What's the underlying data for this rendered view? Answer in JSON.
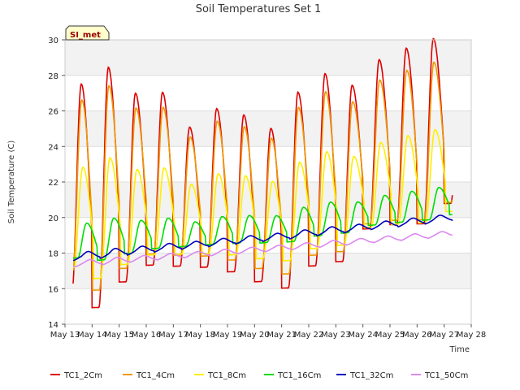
{
  "chart_data": {
    "type": "line",
    "title": "Soil Temperatures Set 1",
    "xlabel": "Time",
    "ylabel": "Soil Temperature (C)",
    "badge": "SI_met",
    "ylim": [
      14,
      30
    ],
    "yticks": [
      14,
      16,
      18,
      20,
      22,
      24,
      26,
      28,
      30
    ],
    "xlim": [
      13,
      28
    ],
    "xticks": [
      {
        "value": 13,
        "label": "May 13"
      },
      {
        "value": 14,
        "label": "May 14"
      },
      {
        "value": 15,
        "label": "May 15"
      },
      {
        "value": 16,
        "label": "May 16"
      },
      {
        "value": 17,
        "label": "May 17"
      },
      {
        "value": 18,
        "label": "May 18"
      },
      {
        "value": 19,
        "label": "May 19"
      },
      {
        "value": 20,
        "label": "May 20"
      },
      {
        "value": 21,
        "label": "May 21"
      },
      {
        "value": 22,
        "label": "May 22"
      },
      {
        "value": 23,
        "label": "May 23"
      },
      {
        "value": 24,
        "label": "May 24"
      },
      {
        "value": 25,
        "label": "May 25"
      },
      {
        "value": 26,
        "label": "May 26"
      },
      {
        "value": 27,
        "label": "May 27"
      },
      {
        "value": 28,
        "label": "May 28"
      }
    ],
    "x_start": 13.3,
    "x_end": 27.3,
    "peak_phase": 0.6,
    "daily_peaks": [
      27.8,
      28.7,
      27.2,
      27.2,
      25.2,
      26.2,
      25.8,
      25.0,
      27.0,
      28.0,
      27.3,
      28.7,
      29.3,
      29.8
    ],
    "daily_mins": [
      16.0,
      15.2,
      16.6,
      17.5,
      17.4,
      17.3,
      17.0,
      16.4,
      16.0,
      17.2,
      17.4,
      19.2,
      19.4,
      19.4,
      20.5
    ],
    "series": [
      {
        "name": "TC1_2Cm",
        "color": "#dd0000",
        "attenuation": 1.0,
        "lag": 0.0,
        "base_start": 21.5,
        "base_end": 24.5
      },
      {
        "name": "TC1_4Cm",
        "color": "#ee9900",
        "attenuation": 0.85,
        "lag": 0.02,
        "base_start": 21.5,
        "base_end": 24.0
      },
      {
        "name": "TC1_8Cm",
        "color": "#ffee00",
        "attenuation": 0.5,
        "lag": 0.06,
        "base_start": 19.8,
        "base_end": 22.2
      },
      {
        "name": "TC1_16Cm",
        "color": "#00dd00",
        "attenuation": 0.17,
        "lag": 0.2,
        "base_start": 18.6,
        "base_end": 20.8
      },
      {
        "name": "TC1_32Cm",
        "color": "#0000bb",
        "attenuation": 0.02,
        "lag": 0.3,
        "base_start": 17.8,
        "base_end": 20.0
      },
      {
        "name": "TC1_50Cm",
        "color": "#dd88ee",
        "attenuation": 0.01,
        "lag": 0.4,
        "base_start": 17.4,
        "base_end": 19.1
      }
    ]
  }
}
